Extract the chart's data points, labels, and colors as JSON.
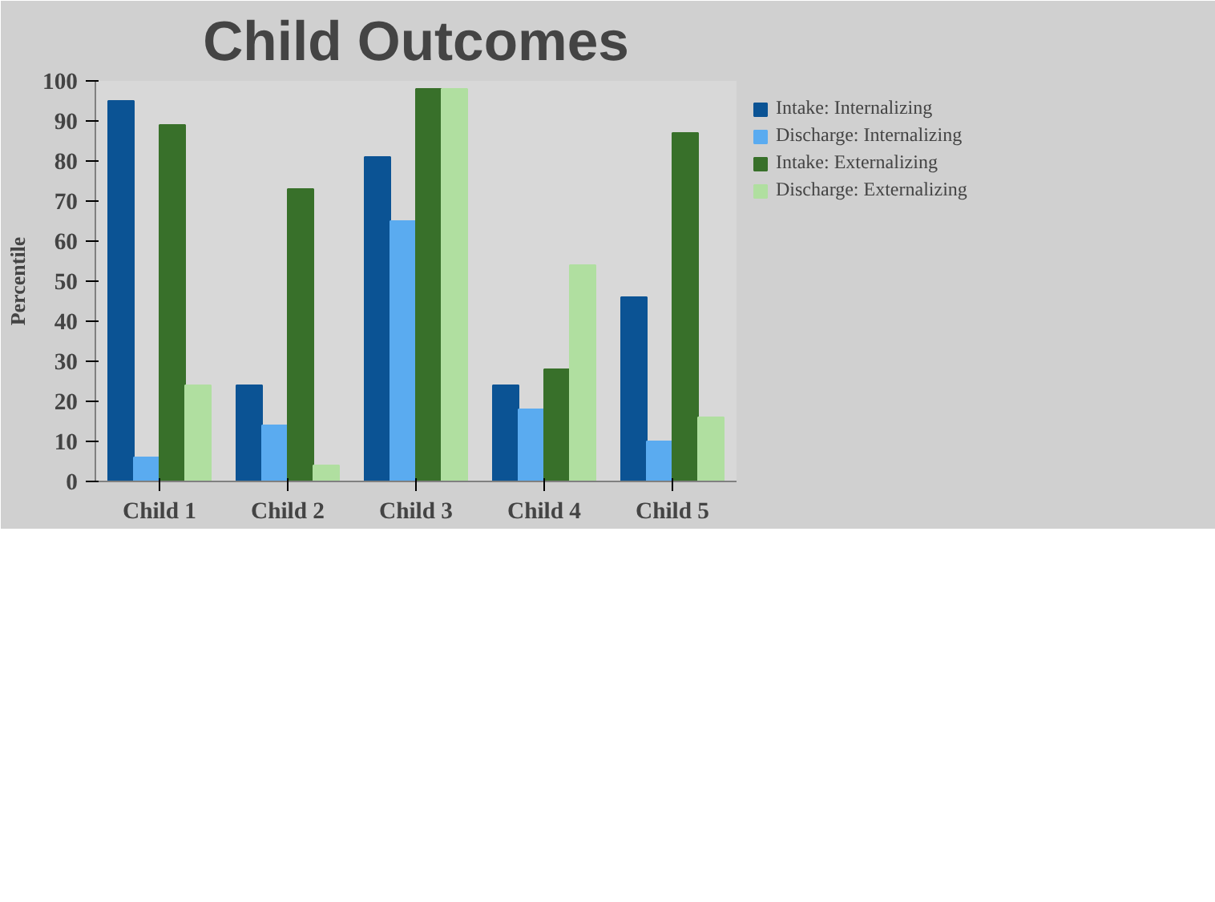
{
  "chart_data": {
    "type": "bar",
    "title": "Child Outcomes",
    "ylabel": "Percentile",
    "categories": [
      "Child 1",
      "Child 2",
      "Child 3",
      "Child 4",
      "Child 5"
    ],
    "series": [
      {
        "name": "Intake: Internalizing",
        "color": "#0b5394",
        "values": [
          95,
          24,
          81,
          24,
          46
        ]
      },
      {
        "name": "Discharge: Internalizing",
        "color": "#5aabf0",
        "values": [
          6,
          14,
          65,
          18,
          10
        ]
      },
      {
        "name": "Intake: Externalizing",
        "color": "#38702a",
        "values": [
          89,
          73,
          98,
          28,
          87
        ]
      },
      {
        "name": "Discharge: Externalizing",
        "color": "#b0dfa0",
        "values": [
          24,
          4,
          98,
          54,
          16
        ]
      }
    ],
    "ylim": [
      0,
      100
    ],
    "yticks": [
      0,
      10,
      20,
      30,
      40,
      50,
      60,
      70,
      80,
      90,
      100
    ],
    "grid": false,
    "legend": "top right"
  }
}
